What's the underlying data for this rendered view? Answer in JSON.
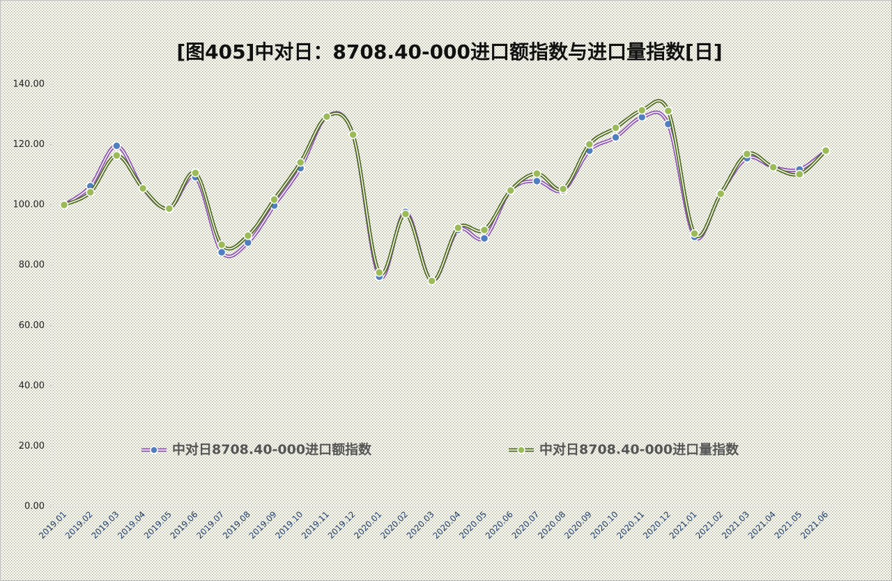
{
  "chart_data": {
    "type": "line",
    "title": "[图405]中对日：8708.40-000进口额指数与进口量指数[日]",
    "categories": [
      "2019.01",
      "2019.02",
      "2019.03",
      "2019.04",
      "2019.05",
      "2019.06",
      "2019.07",
      "2019.08",
      "2019.09",
      "2019.10",
      "2019.11",
      "2019.12",
      "2020.01",
      "2020.02",
      "2020.03",
      "2020.04",
      "2020.05",
      "2020.06",
      "2020.07",
      "2020.08",
      "2020.09",
      "2020.10",
      "2020.11",
      "2020.12",
      "2021.01",
      "2021.02",
      "2021.03",
      "2021.04",
      "2021.05",
      "2021.06"
    ],
    "series": [
      {
        "name": "中对日8708.40-000进口额指数",
        "color": "#8e52b5",
        "marker_color": "#4f7fbf",
        "values": [
          100.0,
          106.2,
          119.6,
          105.5,
          98.8,
          109.2,
          84.3,
          87.5,
          99.8,
          112.2,
          129.3,
          123.3,
          76.2,
          97.7,
          74.8,
          91.7,
          88.9,
          104.8,
          107.9,
          104.8,
          118.0,
          122.4,
          129.1,
          126.8,
          89.4,
          103.7,
          115.5,
          112.5,
          111.8,
          118.0
        ]
      },
      {
        "name": "中对日8708.40-000进口量指数",
        "color": "#4e6b1e",
        "marker_color": "#9bbb59",
        "values": [
          100.0,
          104.2,
          116.4,
          105.5,
          98.8,
          110.6,
          86.8,
          89.8,
          101.8,
          114.1,
          129.3,
          123.3,
          77.6,
          97.0,
          74.8,
          92.4,
          91.7,
          104.8,
          110.4,
          105.3,
          120.1,
          125.6,
          131.4,
          131.2,
          90.5,
          103.7,
          116.9,
          112.5,
          110.2,
          118.0
        ]
      }
    ],
    "ylim": [
      0,
      140
    ],
    "yticks": [
      {
        "value": 0,
        "label": "0.00"
      },
      {
        "value": 20,
        "label": "20.00"
      },
      {
        "value": 40,
        "label": "40.00"
      },
      {
        "value": 60,
        "label": "60.00"
      },
      {
        "value": 80,
        "label": "80.00"
      },
      {
        "value": 100,
        "label": "100.00"
      },
      {
        "value": 120,
        "label": "120.00"
      },
      {
        "value": 140,
        "label": "140.00"
      }
    ],
    "legend": "bottom",
    "smooth": true
  }
}
